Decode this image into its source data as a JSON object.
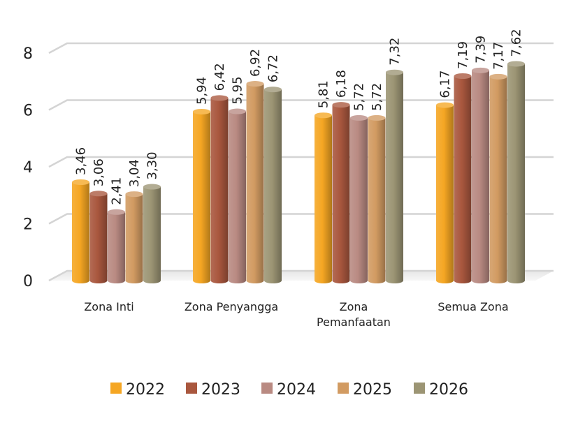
{
  "chart_data": {
    "type": "bar",
    "categories": [
      [
        "Zona Inti"
      ],
      [
        "Zona Penyangga"
      ],
      [
        "Zona",
        "Pemanfaatan"
      ],
      [
        "Semua Zona"
      ]
    ],
    "series": [
      {
        "name": "2022",
        "color": "#F5A623",
        "values": [
          3.46,
          5.94,
          5.81,
          6.17
        ],
        "labels": [
          "3,46",
          "5,94",
          "5,81",
          "6,17"
        ]
      },
      {
        "name": "2023",
        "color": "#A9573E",
        "values": [
          3.06,
          6.42,
          6.18,
          7.19
        ],
        "labels": [
          "3,06",
          "6,42",
          "6,18",
          "7,19"
        ]
      },
      {
        "name": "2024",
        "color": "#B98A82",
        "values": [
          2.41,
          5.95,
          5.72,
          7.39
        ],
        "labels": [
          "2,41",
          "5,95",
          "5,72",
          "7,39"
        ]
      },
      {
        "name": "2025",
        "color": "#D29B62",
        "values": [
          3.04,
          6.92,
          5.72,
          7.17
        ],
        "labels": [
          "3,04",
          "6,92",
          "5,72",
          "7,17"
        ]
      },
      {
        "name": "2026",
        "color": "#9C9574",
        "values": [
          3.3,
          6.72,
          7.32,
          7.62
        ],
        "labels": [
          "3,30",
          "6,72",
          "7,32",
          "7,62"
        ]
      }
    ],
    "yticks": [
      0,
      2,
      4,
      6,
      8
    ],
    "ylim": [
      0,
      8
    ],
    "grid": true,
    "legend": "bottom"
  }
}
